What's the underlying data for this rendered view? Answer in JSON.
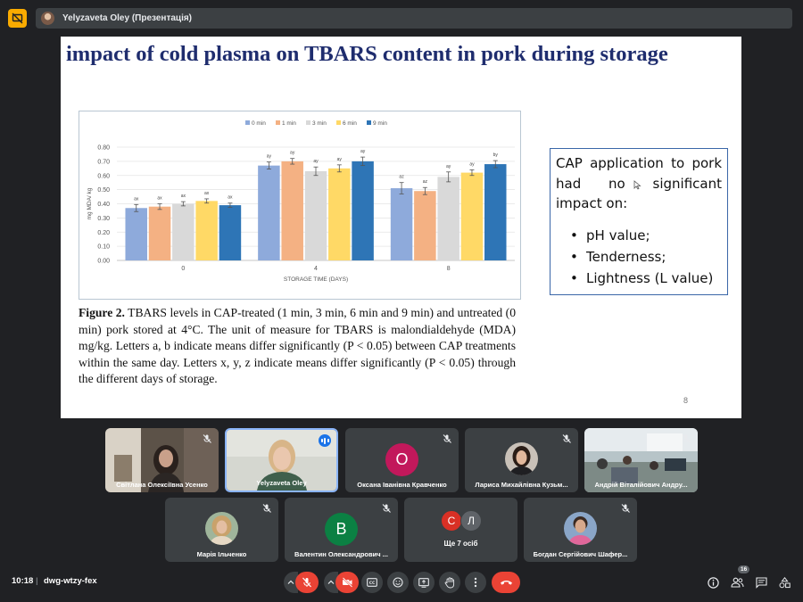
{
  "topbar": {
    "presenter_label": "Yelyzaveta Oley (Презентація)"
  },
  "slide": {
    "title": "impact of cold plasma on TBARS content in pork during storage",
    "caption_bold": "Figure 2.",
    "caption_text": " TBARS levels in CAP-treated (1 min, 3 min, 6 min and 9 min) and untreated (0 min) pork stored at 4°C. The unit of measure for TBARS is malondialdehyde (MDA) mg/kg. Letters a, b indicate means differ significantly (P < 0.05) between CAP treatments within the same day. Letters x, y, z indicate means differ significantly (P < 0.05) through the different days of storage.",
    "info_intro": "CAP application to pork had no significant impact on:",
    "info_items": [
      "pH value;",
      "Tenderness;",
      "Lightness (L value)"
    ],
    "page_number": "8"
  },
  "chart_data": {
    "type": "bar",
    "categories": [
      "0",
      "4",
      "8"
    ],
    "xlabel": "STORAGE TIME (DAYS)",
    "ylabel": "mg MDA/ kg",
    "ylim": [
      0,
      0.8
    ],
    "yticks": [
      "0.00",
      "0.10",
      "0.20",
      "0.30",
      "0.40",
      "0.50",
      "0.60",
      "0.70",
      "0.80"
    ],
    "legend_position": "top",
    "series": [
      {
        "name": "0 min",
        "color": "#8eaadb",
        "values": [
          0.37,
          0.67,
          0.51
        ],
        "errors": [
          0.025,
          0.025,
          0.04
        ],
        "labels": [
          "ax",
          "ay",
          "az"
        ]
      },
      {
        "name": "1 min",
        "color": "#f4b183",
        "values": [
          0.38,
          0.7,
          0.49
        ],
        "errors": [
          0.02,
          0.02,
          0.025
        ],
        "labels": [
          "ax",
          "ay",
          "az"
        ]
      },
      {
        "name": "3 min",
        "color": "#d9d9d9",
        "values": [
          0.4,
          0.63,
          0.59
        ],
        "errors": [
          0.015,
          0.03,
          0.035
        ],
        "labels": [
          "ax",
          "ay",
          "ay"
        ]
      },
      {
        "name": "6 min",
        "color": "#ffd966",
        "values": [
          0.42,
          0.65,
          0.62
        ],
        "errors": [
          0.015,
          0.025,
          0.02
        ],
        "labels": [
          "ax",
          "ay",
          "ay"
        ]
      },
      {
        "name": "9 min",
        "color": "#2e75b6",
        "values": [
          0.39,
          0.7,
          0.68
        ],
        "errors": [
          0.015,
          0.03,
          0.025
        ],
        "labels": [
          "ax",
          "ay",
          "by"
        ]
      }
    ]
  },
  "participants": [
    {
      "name": "Світлана Олексіївна Усенко",
      "type": "video",
      "muted": true
    },
    {
      "name": "Yelyzaveta Oley",
      "type": "video",
      "speaking": true
    },
    {
      "name": "Оксана Іванівна Кравченко",
      "type": "letter",
      "letter": "О",
      "color": "#c2185b",
      "muted": true
    },
    {
      "name": "Лариса Михайлівна Кузьм...",
      "type": "photo",
      "muted": true
    },
    {
      "name": "Андрій Віталійович Андру...",
      "type": "video",
      "muted": true
    },
    {
      "name": "Марія Ільченко",
      "type": "photo",
      "muted": true
    },
    {
      "name": "Валентин Олександрович ...",
      "type": "letter",
      "letter": "В",
      "color": "#0b8043",
      "muted": true
    },
    {
      "name": "Ще 7 осіб",
      "type": "more",
      "letters": [
        "С",
        "Л"
      ],
      "colors": [
        "#d93025",
        "#5f6368"
      ]
    },
    {
      "name": "Богдан Сергійович Шафер...",
      "type": "photo",
      "muted": true
    }
  ],
  "bottombar": {
    "time": "10:18",
    "separator": "|",
    "meeting_code": "dwg-wtzy-fex",
    "participants_count": "16",
    "colors": {
      "end_call": "#ea4335",
      "muted": "#ea4335",
      "control_bg": "#3c4043"
    }
  }
}
